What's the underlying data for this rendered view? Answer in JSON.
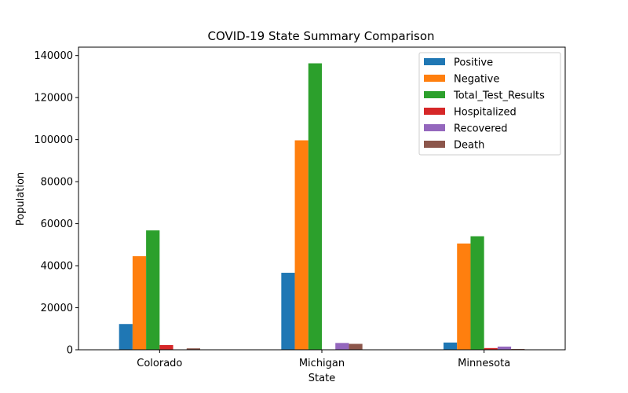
{
  "chart_data": {
    "type": "bar",
    "title": "COVID-19 State Summary Comparison",
    "xlabel": "State",
    "ylabel": "Population",
    "ylim": [
      0,
      144000
    ],
    "yticks": [
      0,
      20000,
      40000,
      60000,
      80000,
      100000,
      120000,
      140000
    ],
    "ytick_labels": [
      "0",
      "20000",
      "40000",
      "60000",
      "80000",
      "100000",
      "120000",
      "140000"
    ],
    "categories": [
      "Colorado",
      "Michigan",
      "Minnesota"
    ],
    "legend_position": "top-right",
    "grid": false,
    "series": [
      {
        "name": "Positive",
        "color": "#1f77b4",
        "values": [
          12255,
          36641,
          3446
        ]
      },
      {
        "name": "Negative",
        "color": "#ff7f0e",
        "values": [
          44548,
          99670,
          50576
        ]
      },
      {
        "name": "Total_Test_Results",
        "color": "#2ca02c",
        "values": [
          56803,
          136311,
          54022
        ]
      },
      {
        "name": "Hospitalized",
        "color": "#d62728",
        "values": [
          2237,
          0,
          812
        ]
      },
      {
        "name": "Recovered",
        "color": "#9467bd",
        "values": [
          0,
          3237,
          1517
        ]
      },
      {
        "name": "Death",
        "color": "#8c564b",
        "values": [
          672,
          2813,
          360
        ]
      }
    ]
  }
}
